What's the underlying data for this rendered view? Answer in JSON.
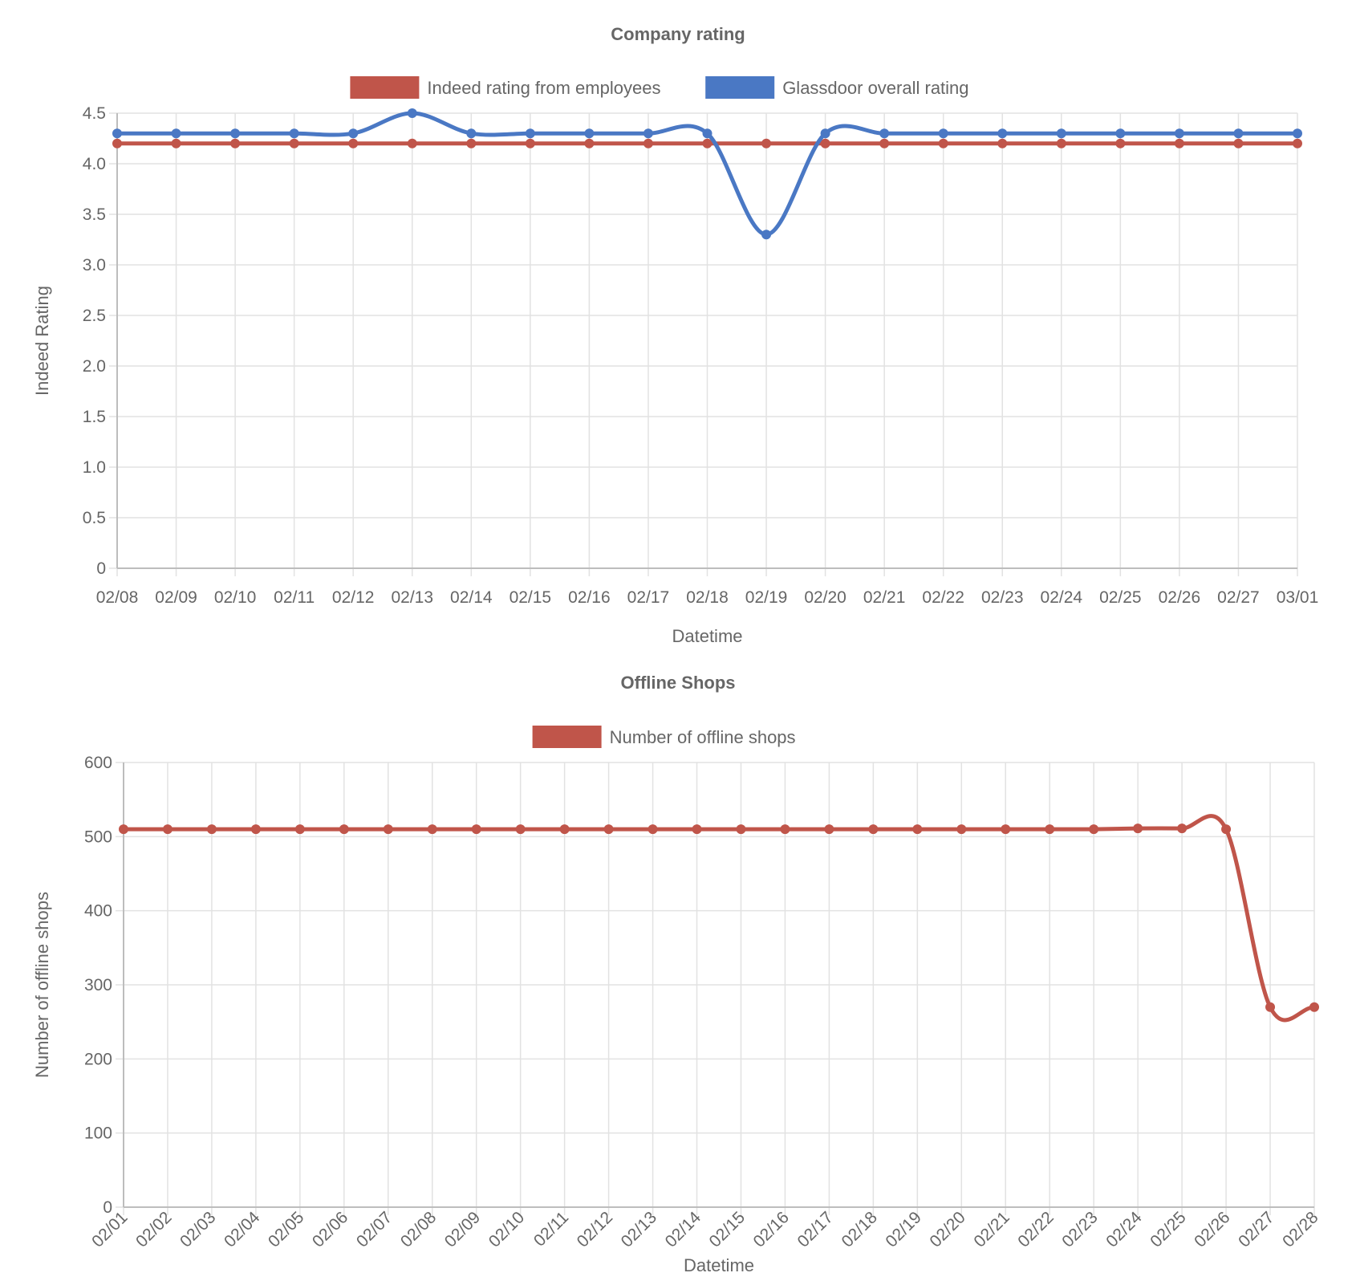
{
  "chart_data": [
    {
      "type": "line",
      "title": "Company rating",
      "xlabel": "Datetime",
      "ylabel": "Indeed Rating",
      "ylim": [
        0,
        4.5
      ],
      "yticks": [
        "0",
        "0.5",
        "1.0",
        "1.5",
        "2.0",
        "2.5",
        "3.0",
        "3.5",
        "4.0",
        "4.5"
      ],
      "ytick_values": [
        0,
        0.5,
        1.0,
        1.5,
        2.0,
        2.5,
        3.0,
        3.5,
        4.0,
        4.5
      ],
      "grid": true,
      "legend_position": "top",
      "categories": [
        "02/08",
        "02/09",
        "02/10",
        "02/11",
        "02/12",
        "02/13",
        "02/14",
        "02/15",
        "02/16",
        "02/17",
        "02/18",
        "02/19",
        "02/20",
        "02/21",
        "02/22",
        "02/23",
        "02/24",
        "02/25",
        "02/26",
        "02/27",
        "03/01"
      ],
      "series": [
        {
          "name": "Indeed rating from employees",
          "color": "#c0554a",
          "values": [
            4.2,
            4.2,
            4.2,
            4.2,
            4.2,
            4.2,
            4.2,
            4.2,
            4.2,
            4.2,
            4.2,
            4.2,
            4.2,
            4.2,
            4.2,
            4.2,
            4.2,
            4.2,
            4.2,
            4.2,
            4.2
          ]
        },
        {
          "name": "Glassdoor overall rating",
          "color": "#4a78c4",
          "values": [
            4.3,
            4.3,
            4.3,
            4.3,
            4.3,
            4.5,
            4.3,
            4.3,
            4.3,
            4.3,
            4.3,
            3.3,
            4.3,
            4.3,
            4.3,
            4.3,
            4.3,
            4.3,
            4.3,
            4.3,
            4.3
          ]
        }
      ]
    },
    {
      "type": "line",
      "title": "Offline Shops",
      "xlabel": "Datetime",
      "ylabel": "Number of offline shops",
      "ylim": [
        0,
        600
      ],
      "yticks": [
        "0",
        "100",
        "200",
        "300",
        "400",
        "500",
        "600"
      ],
      "ytick_values": [
        0,
        100,
        200,
        300,
        400,
        500,
        600
      ],
      "grid": true,
      "legend_position": "top",
      "categories": [
        "02/01",
        "02/02",
        "02/03",
        "02/04",
        "02/05",
        "02/06",
        "02/07",
        "02/08",
        "02/09",
        "02/10",
        "02/11",
        "02/12",
        "02/13",
        "02/14",
        "02/15",
        "02/16",
        "02/17",
        "02/18",
        "02/19",
        "02/20",
        "02/21",
        "02/22",
        "02/23",
        "02/24",
        "02/25",
        "02/26",
        "02/27",
        "02/28"
      ],
      "series": [
        {
          "name": "Number of offline shops",
          "color": "#c0554a",
          "values": [
            510,
            510,
            510,
            510,
            510,
            510,
            510,
            510,
            510,
            510,
            510,
            510,
            510,
            510,
            510,
            510,
            510,
            510,
            510,
            510,
            510,
            510,
            510,
            511,
            511,
            510,
            270,
            270
          ]
        }
      ]
    }
  ]
}
